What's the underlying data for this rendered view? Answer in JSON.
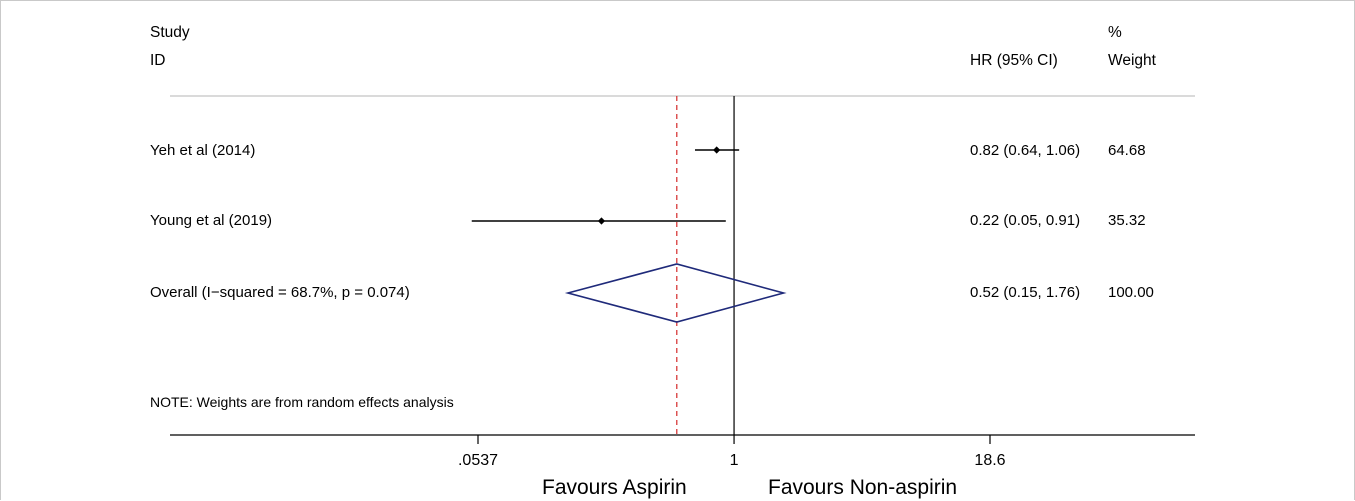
{
  "headers": {
    "study_line1": "Study",
    "study_line2": "ID",
    "hr": "HR (95% CI)",
    "weight_line1": "%",
    "weight_line2": "Weight"
  },
  "rows": [
    {
      "label": "Yeh et al (2014)",
      "hr_text": "0.82 (0.64, 1.06)",
      "weight_text": "64.68"
    },
    {
      "label": "Young et al (2019)",
      "hr_text": "0.22 (0.05, 0.91)",
      "weight_text": "35.32"
    },
    {
      "label": "Overall  (I−squared = 68.7%, p = 0.074)",
      "hr_text": "0.52 (0.15, 1.76)",
      "weight_text": "100.00"
    }
  ],
  "note": "NOTE: Weights are from random effects analysis",
  "axis": {
    "tick_labels": [
      ".0537",
      "1",
      "18.6"
    ],
    "left_label": "Favours Aspirin",
    "right_label": "Favours Non-aspirin"
  },
  "colors": {
    "diamond": "#1f2a7a",
    "ref_line": "#000000",
    "overall_line": "#d42a2a",
    "ci_line": "#000000"
  },
  "chart_data": {
    "type": "forest",
    "x_scale": "log",
    "xlim": [
      0.0537,
      18.6
    ],
    "x_ticks": [
      0.0537,
      1,
      18.6
    ],
    "null_value": 1,
    "series": [
      {
        "name": "Yeh et al (2014)",
        "hr": 0.82,
        "ci": [
          0.64,
          1.06
        ],
        "weight": 64.68
      },
      {
        "name": "Young et al (2019)",
        "hr": 0.22,
        "ci": [
          0.05,
          0.91
        ],
        "weight": 35.32
      }
    ],
    "overall": {
      "hr": 0.52,
      "ci": [
        0.15,
        1.76
      ],
      "weight": 100.0,
      "i_squared": 68.7,
      "p": 0.074
    }
  }
}
